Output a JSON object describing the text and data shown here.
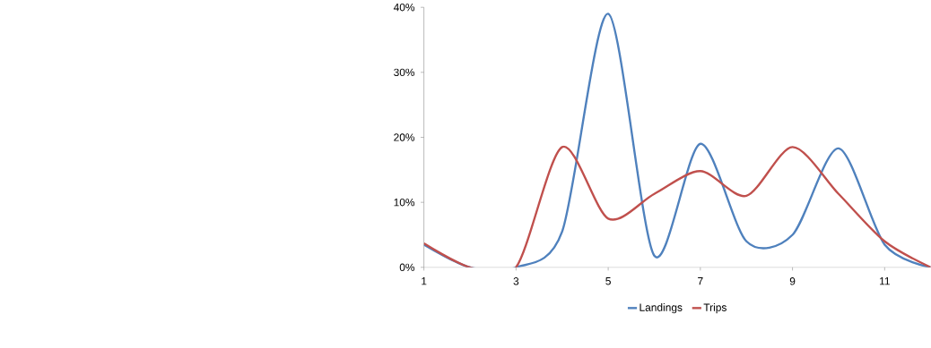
{
  "chart_data": {
    "type": "line",
    "x": [
      1,
      2,
      3,
      4,
      5,
      6,
      7,
      8,
      9,
      10,
      11,
      12
    ],
    "series": [
      {
        "name": "Landings",
        "color": "#4f81bd",
        "values": [
          3.5,
          0,
          0,
          5.5,
          39,
          1.8,
          19,
          4,
          5,
          18.3,
          3.5,
          0
        ]
      },
      {
        "name": "Trips",
        "color": "#c0504d",
        "values": [
          3.7,
          0,
          0,
          18.5,
          7.5,
          11.3,
          14.8,
          11,
          18.5,
          11.3,
          4,
          0
        ]
      }
    ],
    "xlim": [
      1,
      12
    ],
    "xticks": [
      1,
      3,
      5,
      7,
      9,
      11
    ],
    "ylim": [
      0,
      40
    ],
    "yticks": [
      {
        "value": 0,
        "label": "0%"
      },
      {
        "value": 10,
        "label": "10%"
      },
      {
        "value": 20,
        "label": "20%"
      },
      {
        "value": 30,
        "label": "30%"
      },
      {
        "value": 40,
        "label": "40%"
      }
    ],
    "grid": false,
    "legend": "bottom",
    "marker": "none",
    "line_style": "solid"
  }
}
